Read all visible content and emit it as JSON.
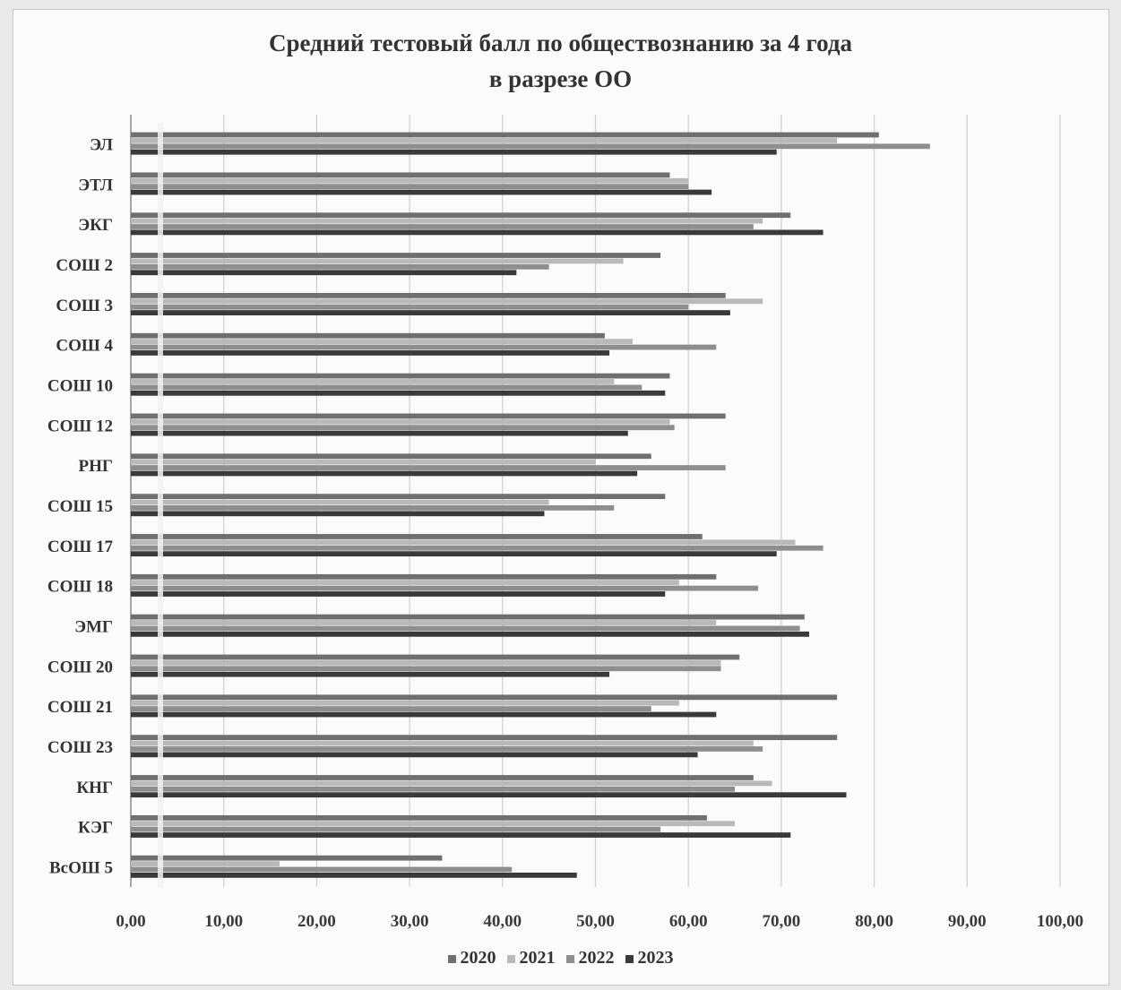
{
  "chart_data": {
    "type": "bar",
    "orientation": "horizontal",
    "title": "Средний тестовый балл по обществознанию за 4 года",
    "subtitle": "в разрезе ОО",
    "categories": [
      "ЭЛ",
      "ЭТЛ",
      "ЭКГ",
      "СОШ 2",
      "СОШ 3",
      "СОШ 4",
      "СОШ 10",
      "СОШ 12",
      "РНГ",
      "СОШ 15",
      "СОШ 17",
      "СОШ 18",
      "ЭМГ",
      "СОШ 20",
      "СОШ 21",
      "СОШ 23",
      "КНГ",
      "КЭГ",
      "ВсОШ 5"
    ],
    "series": [
      {
        "name": "2020",
        "color": "#6f6f6f",
        "values": [
          80.5,
          58.0,
          71.0,
          57.0,
          64.0,
          51.0,
          58.0,
          64.0,
          56.0,
          57.5,
          61.5,
          63.0,
          72.5,
          65.5,
          76.0,
          76.0,
          67.0,
          62.0,
          33.5
        ]
      },
      {
        "name": "2021",
        "color": "#b9b9b9",
        "values": [
          76.0,
          60.0,
          68.0,
          53.0,
          68.0,
          54.0,
          52.0,
          58.0,
          50.0,
          45.0,
          71.5,
          59.0,
          63.0,
          63.5,
          59.0,
          67.0,
          69.0,
          65.0,
          16.0
        ]
      },
      {
        "name": "2022",
        "color": "#8e8e8e",
        "values": [
          86.0,
          60.0,
          67.0,
          45.0,
          60.0,
          63.0,
          55.0,
          58.5,
          64.0,
          52.0,
          74.5,
          67.5,
          72.0,
          63.5,
          56.0,
          68.0,
          65.0,
          57.0,
          41.0
        ]
      },
      {
        "name": "2023",
        "color": "#3a3a3a",
        "values": [
          69.5,
          62.5,
          74.5,
          41.5,
          64.5,
          51.5,
          57.5,
          53.5,
          54.5,
          44.5,
          69.5,
          57.5,
          73.0,
          51.5,
          63.0,
          61.0,
          77.0,
          71.0,
          48.0
        ]
      }
    ],
    "xlim": [
      0,
      100
    ],
    "xticks": [
      "0,00",
      "10,00",
      "20,00",
      "30,00",
      "40,00",
      "50,00",
      "60,00",
      "70,00",
      "80,00",
      "90,00",
      "100,00"
    ],
    "grid": true,
    "legend_position": "bottom"
  }
}
